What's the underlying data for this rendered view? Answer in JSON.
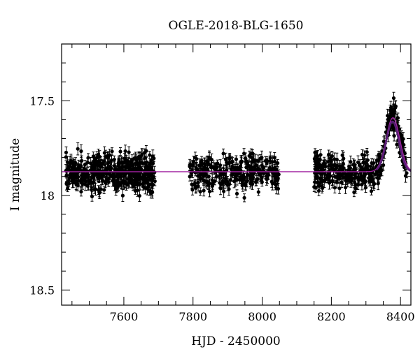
{
  "chart_data": {
    "type": "scatter",
    "title": "OGLE-2018-BLG-1650",
    "xlabel": "HJD - 2450000",
    "ylabel": "I magnitude",
    "xlim": [
      7420,
      8430
    ],
    "ylim": [
      18.58,
      17.2
    ],
    "y_axis_inverted": true,
    "grid": false,
    "x_ticks": [
      {
        "value": 7600,
        "label": "7600"
      },
      {
        "value": 7800,
        "label": "7800"
      },
      {
        "value": 8000,
        "label": "8000"
      },
      {
        "value": 8200,
        "label": "8200"
      },
      {
        "value": 8400,
        "label": "8400"
      }
    ],
    "y_ticks": [
      {
        "value": 17.5,
        "label": "17.5"
      },
      {
        "value": 18.0,
        "label": "18"
      },
      {
        "value": 18.5,
        "label": "18.5"
      }
    ],
    "series": [
      {
        "kind": "points_with_errorbars",
        "color": "#000000",
        "segments": [
          {
            "x_start": 7432,
            "x_end": 7690,
            "baseline_mag": 17.88,
            "scatter_mag": 0.05,
            "errorbar_mag": 0.025,
            "n_points": 420
          },
          {
            "x_start": 7790,
            "x_end": 8050,
            "baseline_mag": 17.88,
            "scatter_mag": 0.045,
            "errorbar_mag": 0.025,
            "n_points": 260
          },
          {
            "x_start": 8150,
            "x_end": 8418,
            "baseline_mag": 17.88,
            "scatter_mag": 0.045,
            "errorbar_mag": 0.025,
            "n_points": 330
          }
        ]
      },
      {
        "kind": "model_curve",
        "color": "#a020a0",
        "baseline_mag": 17.875,
        "peak_mag": 17.59,
        "t0": 8378,
        "tE": 28
      },
      {
        "kind": "model_curve",
        "color": "#5a1e78",
        "baseline_mag": 17.875,
        "peak_mag": 17.61,
        "t0": 8377,
        "tE": 26,
        "x_start": 8330,
        "x_end": 8430
      }
    ]
  }
}
